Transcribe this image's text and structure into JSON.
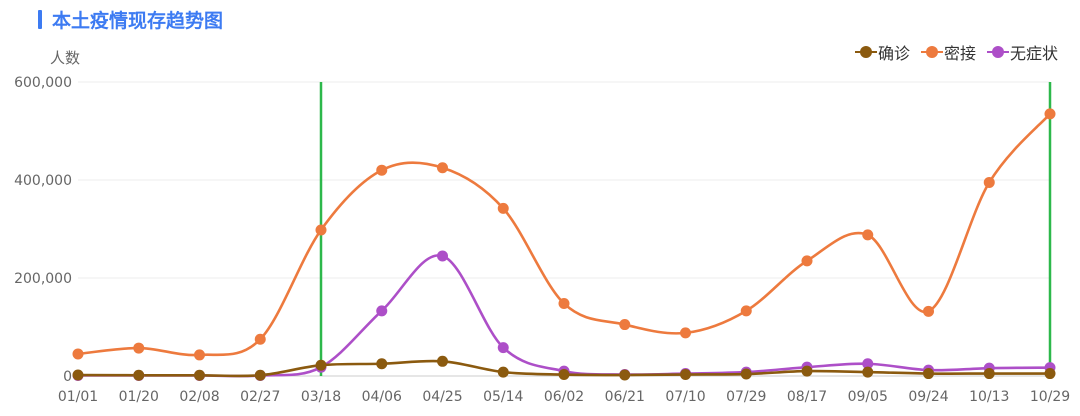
{
  "chart_data": {
    "type": "line",
    "title": "本土疫情现存趋势图",
    "ylabel": "人数",
    "ylim": [
      0,
      600000
    ],
    "y_ticks": [
      0,
      200000,
      400000,
      600000
    ],
    "y_tick_labels": [
      "0",
      "200,000",
      "400,000",
      "600,000"
    ],
    "x": [
      "01/01",
      "01/20",
      "02/08",
      "02/27",
      "03/18",
      "04/06",
      "04/25",
      "05/14",
      "06/02",
      "06/21",
      "07/10",
      "07/29",
      "08/17",
      "09/05",
      "09/24",
      "10/13",
      "10/29"
    ],
    "legend_position": "top-right",
    "grid": true,
    "markers": [
      "03/18",
      "10/29"
    ],
    "marker_color": "#2db84b",
    "series": [
      {
        "name": "确诊",
        "color": "#8b5a0f",
        "values": [
          2000,
          1500,
          1500,
          1500,
          22000,
          25000,
          30000,
          8000,
          3000,
          2000,
          3000,
          4000,
          10000,
          8000,
          5000,
          5000,
          5000
        ]
      },
      {
        "name": "密接",
        "color": "#ed7a3e",
        "values": [
          45000,
          57000,
          43000,
          75000,
          298000,
          420000,
          425000,
          342000,
          148000,
          105000,
          88000,
          133000,
          235000,
          288000,
          132000,
          395000,
          535000
        ]
      },
      {
        "name": "无症状",
        "color": "#ad4fc8",
        "values": [
          1000,
          1000,
          1000,
          1000,
          18000,
          133000,
          245000,
          58000,
          10000,
          3000,
          5000,
          8000,
          18000,
          25000,
          12000,
          16000,
          17000
        ]
      }
    ]
  }
}
